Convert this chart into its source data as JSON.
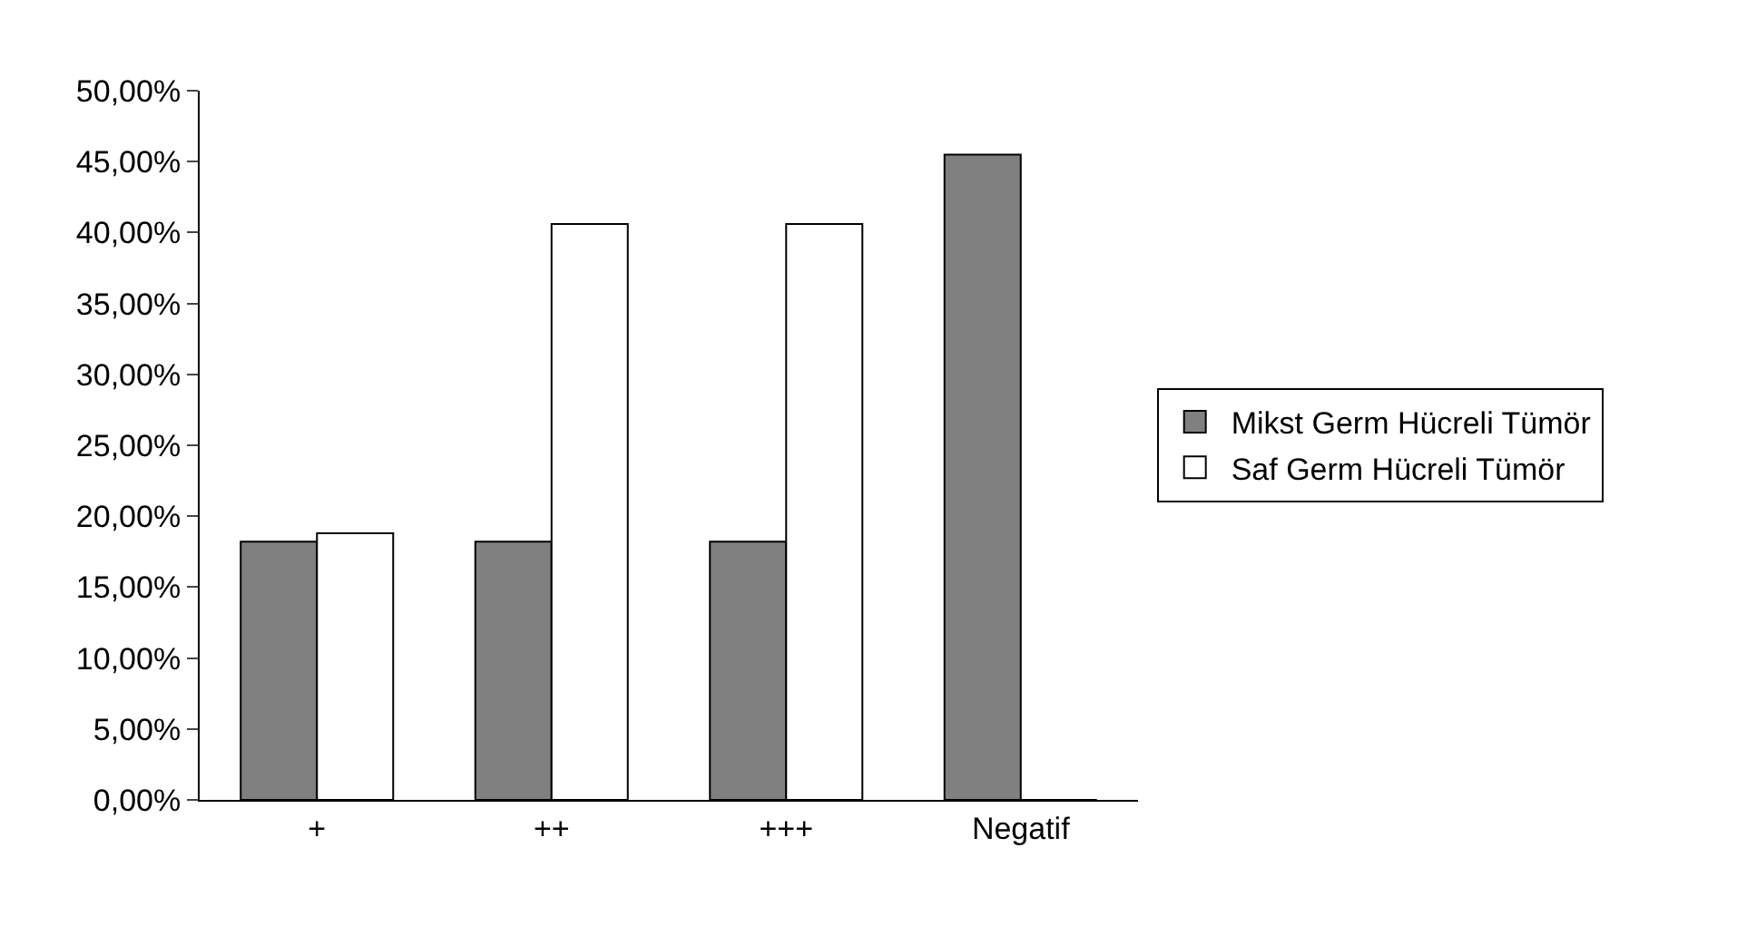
{
  "chart_data": {
    "type": "bar",
    "categories": [
      "+",
      "++",
      "+++",
      "Negatif"
    ],
    "series": [
      {
        "name": "Mikst Germ Hücreli Tümör",
        "color": "#808080",
        "values": [
          18.2,
          18.2,
          18.2,
          45.5
        ]
      },
      {
        "name": "Saf Germ Hücreli Tümör",
        "color": "#ffffff",
        "values": [
          18.8,
          40.6,
          40.6,
          0
        ]
      }
    ],
    "ylim": [
      0,
      50
    ],
    "yticks": [
      {
        "value": 0,
        "label": "0,00%"
      },
      {
        "value": 5,
        "label": "5,00%"
      },
      {
        "value": 10,
        "label": "10,00%"
      },
      {
        "value": 15,
        "label": "15,00%"
      },
      {
        "value": 20,
        "label": "20,00%"
      },
      {
        "value": 25,
        "label": "25,00%"
      },
      {
        "value": 30,
        "label": "30,00%"
      },
      {
        "value": 35,
        "label": "35,00%"
      },
      {
        "value": 40,
        "label": "40,00%"
      },
      {
        "value": 45,
        "label": "45,00%"
      },
      {
        "value": 50,
        "label": "50,00%"
      }
    ],
    "grid": false,
    "legend": "right"
  }
}
